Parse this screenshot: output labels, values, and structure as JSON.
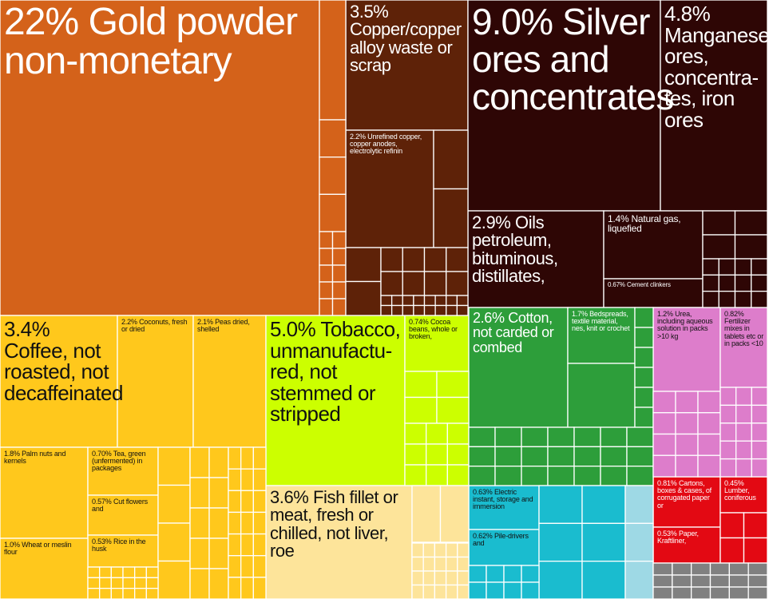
{
  "chart_data": {
    "type": "treemap",
    "title": "",
    "colors": {
      "precious": "#D4621A",
      "metal_brown": "#5E2208",
      "ores_dark": "#2E0605",
      "foodstuff": "#FFC81C",
      "tobacco": "#CCFF00",
      "fish": "#FDE49A",
      "textile": "#2D9E3A",
      "chemical": "#DD7DCB",
      "electrical": "#1ABCCF",
      "wood_paper": "#E30913",
      "filler_light": "#FDE49A",
      "filler_gray": "#808080"
    },
    "labeled_tiles": [
      {
        "label": "22% Gold powder non-monetary",
        "share": 22,
        "color": "precious",
        "text_color": "#ffffff"
      },
      {
        "label": "3.5% Copper/copper alloy waste or scrap",
        "share": 3.5,
        "color": "metal_brown",
        "text_color": "#ffffff"
      },
      {
        "label": "2.2% Unrefined copper, copper anodes, electrolytic refinin",
        "share": 2.2,
        "color": "metal_brown",
        "text_color": "#ffffff"
      },
      {
        "label": "9.0% Silver ores and concentrates",
        "share": 9.0,
        "color": "ores_dark",
        "text_color": "#ffffff"
      },
      {
        "label": "4.8% Manganese ores, concentra-tes, iron ores",
        "share": 4.8,
        "color": "ores_dark",
        "text_color": "#ffffff"
      },
      {
        "label": "2.9% Oils petroleum, bituminous, distillates,",
        "share": 2.9,
        "color": "ores_dark",
        "text_color": "#ffffff"
      },
      {
        "label": "1.4% Natural gas, liquefied",
        "share": 1.4,
        "color": "ores_dark",
        "text_color": "#ffffff"
      },
      {
        "label": "0.67% Cement clinkers",
        "share": 0.67,
        "color": "ores_dark",
        "text_color": "#ffffff"
      },
      {
        "label": "3.4% Coffee, not roasted, not decaffeinated",
        "share": 3.4,
        "color": "foodstuff",
        "text_color": "#111111"
      },
      {
        "label": "2.2% Coconuts, fresh or dried",
        "share": 2.2,
        "color": "foodstuff",
        "text_color": "#111111"
      },
      {
        "label": "2.1% Peas dried, shelled",
        "share": 2.1,
        "color": "foodstuff",
        "text_color": "#111111"
      },
      {
        "label": "1.8% Palm nuts and kernels",
        "share": 1.8,
        "color": "foodstuff",
        "text_color": "#111111"
      },
      {
        "label": "0.70% Tea, green (unfermented) in packages",
        "share": 0.7,
        "color": "foodstuff",
        "text_color": "#111111"
      },
      {
        "label": "0.57% Cut flowers and",
        "share": 0.57,
        "color": "foodstuff",
        "text_color": "#111111"
      },
      {
        "label": "0.53% Rice in the husk",
        "share": 0.53,
        "color": "foodstuff",
        "text_color": "#111111"
      },
      {
        "label": "1.0% Wheat or meslin flour",
        "share": 1.0,
        "color": "foodstuff",
        "text_color": "#111111"
      },
      {
        "label": "5.0% Tobacco, unmanufactu-red, not stemmed or stripped",
        "share": 5.0,
        "color": "tobacco",
        "text_color": "#111111"
      },
      {
        "label": "0.74% Cocoa beans, whole or broken,",
        "share": 0.74,
        "color": "tobacco",
        "text_color": "#111111"
      },
      {
        "label": "3.6% Fish fillet or meat, fresh or chilled, not liver, roe",
        "share": 3.6,
        "color": "fish",
        "text_color": "#111111"
      },
      {
        "label": "2.6% Cotton, not carded or combed",
        "share": 2.6,
        "color": "textile",
        "text_color": "#ffffff"
      },
      {
        "label": "1.7% Bedspreads, textile material, nes, knit or crochet",
        "share": 1.7,
        "color": "textile",
        "text_color": "#ffffff"
      },
      {
        "label": "1.2% Urea, including aqueous solution in packs >10 kg",
        "share": 1.2,
        "color": "chemical",
        "text_color": "#111111"
      },
      {
        "label": "0.82% Fertilizer mixes in tablets etc or in packs <10",
        "share": 0.82,
        "color": "chemical",
        "text_color": "#111111"
      },
      {
        "label": "0.63% Electric instant, storage and immersion",
        "share": 0.63,
        "color": "electrical",
        "text_color": "#111111"
      },
      {
        "label": "0.62% Pile-drivers and",
        "share": 0.62,
        "color": "electrical",
        "text_color": "#111111"
      },
      {
        "label": "0.81% Cartons, boxes & cases, of corrugated paper or",
        "share": 0.81,
        "color": "wood_paper",
        "text_color": "#ffffff"
      },
      {
        "label": "0.45% Lumber, coniferous",
        "share": 0.45,
        "color": "wood_paper",
        "text_color": "#ffffff"
      },
      {
        "label": "0.53% Paper, Kraftliner,",
        "share": 0.53,
        "color": "wood_paper",
        "text_color": "#ffffff"
      }
    ]
  }
}
